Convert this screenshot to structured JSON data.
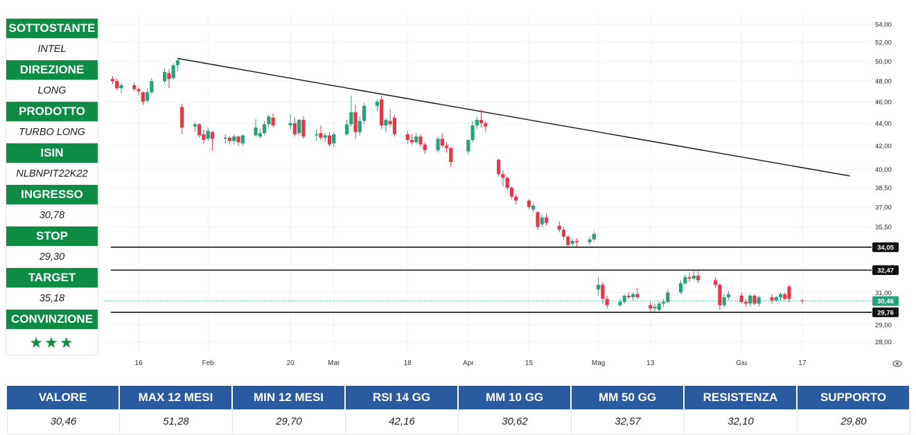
{
  "side_panel": [
    {
      "label": "SOTTOSTANTE",
      "value": "INTEL"
    },
    {
      "label": "DIREZIONE",
      "value": "LONG"
    },
    {
      "label": "PRODOTTO",
      "value": "TURBO LONG"
    },
    {
      "label": "ISIN",
      "value": "NLBNPIT22K22"
    },
    {
      "label": "INGRESSO",
      "value": "30,78"
    },
    {
      "label": "STOP",
      "value": "29,30"
    },
    {
      "label": "TARGET",
      "value": "35,18"
    },
    {
      "label": "CONVINZIONE",
      "value": "★★★"
    }
  ],
  "stats": [
    {
      "label": "VALORE",
      "value": "30,46"
    },
    {
      "label": "MAX 12 MESI",
      "value": "51,28"
    },
    {
      "label": "MIN 12 MESI",
      "value": "29,70"
    },
    {
      "label": "RSI 14 GG",
      "value": "42,16"
    },
    {
      "label": "MM 10 GG",
      "value": "30,62"
    },
    {
      "label": "MM 50 GG",
      "value": "32,57"
    },
    {
      "label": "RESISTENZA",
      "value": "32,10"
    },
    {
      "label": "SUPPORTO",
      "value": "29,80"
    }
  ],
  "colors": {
    "up": "#26a17b",
    "down": "#e0394a",
    "panel_green": "#0f8c44",
    "table_blue": "#2a5aa0",
    "last_price": "#26a17b"
  },
  "chart_data": {
    "type": "candlestick",
    "y_scale": "log",
    "ylim": [
      27.5,
      55
    ],
    "y_ticks": [
      "54,00",
      "52,00",
      "50,00",
      "48,00",
      "46,00",
      "44,00",
      "42,00",
      "40,00",
      "38,50",
      "37,00",
      "35,50",
      "31,00",
      "29,00",
      "28,00"
    ],
    "x_ticks": [
      {
        "label": "16",
        "date": "2024-01-16"
      },
      {
        "label": "Feb",
        "date": "2024-02-01"
      },
      {
        "label": "20",
        "date": "2024-02-20"
      },
      {
        "label": "Mar",
        "date": "2024-03-01"
      },
      {
        "label": "18",
        "date": "2024-03-18"
      },
      {
        "label": "Apr",
        "date": "2024-04-01"
      },
      {
        "label": "15",
        "date": "2024-04-15"
      },
      {
        "label": "Mag",
        "date": "2024-05-01"
      },
      {
        "label": "13",
        "date": "2024-05-13"
      },
      {
        "label": "Giu",
        "date": "2024-06-03"
      },
      {
        "label": "17",
        "date": "2024-06-17"
      }
    ],
    "candles": [
      {
        "d": "2024-01-10",
        "o": 48.2,
        "h": 48.5,
        "l": 47.7,
        "c": 48.0
      },
      {
        "d": "2024-01-11",
        "o": 48.0,
        "h": 48.3,
        "l": 47.1,
        "c": 47.3
      },
      {
        "d": "2024-01-12",
        "o": 47.3,
        "h": 47.8,
        "l": 46.8,
        "c": 47.6
      },
      {
        "d": "2024-01-15",
        "o": 47.6,
        "h": 47.9,
        "l": 47.0,
        "c": 47.2
      },
      {
        "d": "2024-01-16",
        "o": 47.2,
        "h": 47.4,
        "l": 46.6,
        "c": 47.0
      },
      {
        "d": "2024-01-17",
        "o": 46.9,
        "h": 47.0,
        "l": 45.7,
        "c": 46.0
      },
      {
        "d": "2024-01-18",
        "o": 46.1,
        "h": 47.2,
        "l": 45.9,
        "c": 46.9
      },
      {
        "d": "2024-01-19",
        "o": 46.9,
        "h": 48.3,
        "l": 46.7,
        "c": 48.0
      },
      {
        "d": "2024-01-22",
        "o": 48.0,
        "h": 49.3,
        "l": 47.7,
        "c": 48.9
      },
      {
        "d": "2024-01-23",
        "o": 48.8,
        "h": 49.2,
        "l": 47.3,
        "c": 48.2
      },
      {
        "d": "2024-01-24",
        "o": 48.3,
        "h": 49.8,
        "l": 48.1,
        "c": 49.6
      },
      {
        "d": "2024-01-25",
        "o": 49.6,
        "h": 50.4,
        "l": 49.0,
        "c": 50.1
      },
      {
        "d": "2024-01-26",
        "o": 45.5,
        "h": 45.8,
        "l": 43.0,
        "c": 43.6
      },
      {
        "d": "2024-01-29",
        "o": 43.7,
        "h": 44.1,
        "l": 43.2,
        "c": 43.9
      },
      {
        "d": "2024-01-30",
        "o": 43.9,
        "h": 44.0,
        "l": 42.7,
        "c": 42.9
      },
      {
        "d": "2024-01-31",
        "o": 43.0,
        "h": 43.4,
        "l": 42.2,
        "c": 42.5
      },
      {
        "d": "2024-02-01",
        "o": 42.6,
        "h": 43.6,
        "l": 42.4,
        "c": 43.3
      },
      {
        "d": "2024-02-02",
        "o": 43.2,
        "h": 43.3,
        "l": 41.6,
        "c": 42.6
      },
      {
        "d": "2024-02-05",
        "o": 42.6,
        "h": 43.0,
        "l": 42.2,
        "c": 42.7
      },
      {
        "d": "2024-02-06",
        "o": 42.7,
        "h": 42.8,
        "l": 42.1,
        "c": 42.4
      },
      {
        "d": "2024-02-07",
        "o": 42.4,
        "h": 43.0,
        "l": 42.1,
        "c": 42.8
      },
      {
        "d": "2024-02-08",
        "o": 42.8,
        "h": 42.9,
        "l": 42.0,
        "c": 42.3
      },
      {
        "d": "2024-02-09",
        "o": 42.2,
        "h": 43.0,
        "l": 42.0,
        "c": 42.9
      },
      {
        "d": "2024-02-12",
        "o": 42.9,
        "h": 44.4,
        "l": 42.8,
        "c": 43.6
      },
      {
        "d": "2024-02-13",
        "o": 42.8,
        "h": 43.5,
        "l": 42.6,
        "c": 43.1
      },
      {
        "d": "2024-02-14",
        "o": 43.1,
        "h": 44.2,
        "l": 42.9,
        "c": 43.9
      },
      {
        "d": "2024-02-15",
        "o": 43.9,
        "h": 44.8,
        "l": 43.6,
        "c": 44.6
      },
      {
        "d": "2024-02-16",
        "o": 44.5,
        "h": 44.9,
        "l": 43.6,
        "c": 43.8
      },
      {
        "d": "2024-02-20",
        "o": 43.8,
        "h": 44.8,
        "l": 43.5,
        "c": 44.0
      },
      {
        "d": "2024-02-21",
        "o": 44.0,
        "h": 44.5,
        "l": 42.8,
        "c": 43.0
      },
      {
        "d": "2024-02-22",
        "o": 43.1,
        "h": 44.4,
        "l": 42.9,
        "c": 44.3
      },
      {
        "d": "2024-02-23",
        "o": 44.3,
        "h": 44.6,
        "l": 42.6,
        "c": 42.8
      },
      {
        "d": "2024-02-26",
        "o": 42.9,
        "h": 43.4,
        "l": 42.4,
        "c": 43.0
      },
      {
        "d": "2024-02-27",
        "o": 43.1,
        "h": 43.8,
        "l": 42.5,
        "c": 42.7
      },
      {
        "d": "2024-02-28",
        "o": 42.7,
        "h": 43.1,
        "l": 42.3,
        "c": 42.9
      },
      {
        "d": "2024-02-29",
        "o": 42.9,
        "h": 43.2,
        "l": 41.9,
        "c": 42.1
      },
      {
        "d": "2024-03-01",
        "o": 42.2,
        "h": 43.2,
        "l": 41.9,
        "c": 43.0
      },
      {
        "d": "2024-03-04",
        "o": 43.0,
        "h": 44.3,
        "l": 42.9,
        "c": 43.9
      },
      {
        "d": "2024-03-05",
        "o": 43.9,
        "h": 46.6,
        "l": 43.7,
        "c": 45.0
      },
      {
        "d": "2024-03-06",
        "o": 45.0,
        "h": 45.7,
        "l": 42.6,
        "c": 43.2
      },
      {
        "d": "2024-03-07",
        "o": 43.2,
        "h": 44.6,
        "l": 42.9,
        "c": 44.2
      },
      {
        "d": "2024-03-08",
        "o": 44.2,
        "h": 45.9,
        "l": 43.9,
        "c": 45.6
      },
      {
        "d": "2024-03-11",
        "o": 45.6,
        "h": 46.2,
        "l": 45.1,
        "c": 46.0
      },
      {
        "d": "2024-03-12",
        "o": 46.2,
        "h": 46.6,
        "l": 43.5,
        "c": 43.8
      },
      {
        "d": "2024-03-13",
        "o": 43.8,
        "h": 44.5,
        "l": 43.2,
        "c": 44.3
      },
      {
        "d": "2024-03-14",
        "o": 44.2,
        "h": 45.3,
        "l": 43.7,
        "c": 43.9
      },
      {
        "d": "2024-03-15",
        "o": 44.5,
        "h": 44.8,
        "l": 42.8,
        "c": 43.0
      },
      {
        "d": "2024-03-18",
        "o": 43.0,
        "h": 43.3,
        "l": 42.2,
        "c": 42.5
      },
      {
        "d": "2024-03-19",
        "o": 42.5,
        "h": 43.0,
        "l": 42.1,
        "c": 42.3
      },
      {
        "d": "2024-03-20",
        "o": 42.3,
        "h": 43.1,
        "l": 42.1,
        "c": 42.8
      },
      {
        "d": "2024-03-21",
        "o": 42.8,
        "h": 43.0,
        "l": 41.9,
        "c": 42.1
      },
      {
        "d": "2024-03-22",
        "o": 42.1,
        "h": 42.3,
        "l": 41.3,
        "c": 41.6
      },
      {
        "d": "2024-03-25",
        "o": 41.6,
        "h": 42.8,
        "l": 41.4,
        "c": 42.6
      },
      {
        "d": "2024-03-26",
        "o": 42.6,
        "h": 43.1,
        "l": 41.8,
        "c": 42.0
      },
      {
        "d": "2024-03-27",
        "o": 42.0,
        "h": 42.3,
        "l": 41.4,
        "c": 41.8
      },
      {
        "d": "2024-03-28",
        "o": 41.8,
        "h": 41.9,
        "l": 40.2,
        "c": 40.6
      },
      {
        "d": "2024-04-01",
        "o": 41.5,
        "h": 42.6,
        "l": 41.2,
        "c": 42.5
      },
      {
        "d": "2024-04-02",
        "o": 42.5,
        "h": 44.2,
        "l": 42.3,
        "c": 43.8
      },
      {
        "d": "2024-04-03",
        "o": 43.8,
        "h": 44.6,
        "l": 43.5,
        "c": 44.3
      },
      {
        "d": "2024-04-04",
        "o": 44.3,
        "h": 45.3,
        "l": 43.6,
        "c": 44.0
      },
      {
        "d": "2024-04-05",
        "o": 44.0,
        "h": 44.2,
        "l": 43.2,
        "c": 43.7
      },
      {
        "d": "2024-04-08",
        "o": 40.8,
        "h": 40.9,
        "l": 39.4,
        "c": 39.6
      },
      {
        "d": "2024-04-09",
        "o": 39.6,
        "h": 39.9,
        "l": 38.6,
        "c": 39.3
      },
      {
        "d": "2024-04-10",
        "o": 39.3,
        "h": 39.4,
        "l": 38.3,
        "c": 38.5
      },
      {
        "d": "2024-04-11",
        "o": 38.5,
        "h": 38.6,
        "l": 37.6,
        "c": 37.8
      },
      {
        "d": "2024-04-12",
        "o": 37.8,
        "h": 38.0,
        "l": 37.2,
        "c": 37.5
      },
      {
        "d": "2024-04-15",
        "o": 37.5,
        "h": 37.6,
        "l": 36.8,
        "c": 37.0
      },
      {
        "d": "2024-04-16",
        "o": 36.8,
        "h": 37.3,
        "l": 36.6,
        "c": 37.1
      },
      {
        "d": "2024-04-17",
        "o": 36.6,
        "h": 36.7,
        "l": 35.3,
        "c": 35.5
      },
      {
        "d": "2024-04-18",
        "o": 35.7,
        "h": 36.4,
        "l": 35.5,
        "c": 36.2
      },
      {
        "d": "2024-04-19",
        "o": 36.2,
        "h": 36.5,
        "l": 35.6,
        "c": 35.8
      },
      {
        "d": "2024-04-22",
        "o": 35.6,
        "h": 35.9,
        "l": 35.1,
        "c": 35.3
      },
      {
        "d": "2024-04-23",
        "o": 35.3,
        "h": 35.5,
        "l": 34.6,
        "c": 34.8
      },
      {
        "d": "2024-04-24",
        "o": 34.8,
        "h": 34.9,
        "l": 34.1,
        "c": 34.2
      },
      {
        "d": "2024-04-25",
        "o": 34.3,
        "h": 34.7,
        "l": 34.0,
        "c": 34.5
      },
      {
        "d": "2024-04-26",
        "o": 34.5,
        "h": 34.7,
        "l": 34.1,
        "c": 34.4
      },
      {
        "d": "2024-04-29",
        "o": 34.4,
        "h": 34.8,
        "l": 34.2,
        "c": 34.6
      },
      {
        "d": "2024-04-30",
        "o": 34.6,
        "h": 35.2,
        "l": 34.5,
        "c": 35.0
      },
      {
        "d": "2024-05-01",
        "o": 31.2,
        "h": 32.0,
        "l": 30.8,
        "c": 31.5
      },
      {
        "d": "2024-05-02",
        "o": 31.5,
        "h": 31.7,
        "l": 30.3,
        "c": 30.6
      },
      {
        "d": "2024-05-03",
        "o": 30.6,
        "h": 30.8,
        "l": 30.0,
        "c": 30.2
      },
      {
        "d": "2024-05-06",
        "o": 30.2,
        "h": 30.6,
        "l": 30.1,
        "c": 30.4
      },
      {
        "d": "2024-05-07",
        "o": 30.4,
        "h": 30.9,
        "l": 30.3,
        "c": 30.8
      },
      {
        "d": "2024-05-08",
        "o": 30.8,
        "h": 31.0,
        "l": 30.6,
        "c": 30.7
      },
      {
        "d": "2024-05-09",
        "o": 30.7,
        "h": 31.0,
        "l": 30.5,
        "c": 30.9
      },
      {
        "d": "2024-05-10",
        "o": 30.9,
        "h": 31.3,
        "l": 30.6,
        "c": 30.7
      },
      {
        "d": "2024-05-13",
        "o": 30.2,
        "h": 30.4,
        "l": 29.8,
        "c": 30.0
      },
      {
        "d": "2024-05-14",
        "o": 30.0,
        "h": 30.3,
        "l": 29.8,
        "c": 30.1
      },
      {
        "d": "2024-05-15",
        "o": 29.9,
        "h": 30.4,
        "l": 29.7,
        "c": 30.3
      },
      {
        "d": "2024-05-16",
        "o": 30.3,
        "h": 30.6,
        "l": 30.1,
        "c": 30.4
      },
      {
        "d": "2024-05-17",
        "o": 30.4,
        "h": 31.2,
        "l": 30.3,
        "c": 31.0
      },
      {
        "d": "2024-05-20",
        "o": 31.0,
        "h": 31.8,
        "l": 30.9,
        "c": 31.6
      },
      {
        "d": "2024-05-21",
        "o": 31.6,
        "h": 32.2,
        "l": 31.5,
        "c": 32.0
      },
      {
        "d": "2024-05-22",
        "o": 32.0,
        "h": 32.3,
        "l": 31.7,
        "c": 31.9
      },
      {
        "d": "2024-05-23",
        "o": 31.9,
        "h": 32.4,
        "l": 31.8,
        "c": 32.1
      },
      {
        "d": "2024-05-24",
        "o": 32.1,
        "h": 32.4,
        "l": 31.6,
        "c": 31.8
      },
      {
        "d": "2024-05-28",
        "o": 31.8,
        "h": 32.0,
        "l": 31.3,
        "c": 31.5
      },
      {
        "d": "2024-05-29",
        "o": 31.5,
        "h": 31.6,
        "l": 29.9,
        "c": 30.2
      },
      {
        "d": "2024-05-30",
        "o": 30.2,
        "h": 30.9,
        "l": 30.1,
        "c": 30.7
      },
      {
        "d": "2024-05-31",
        "o": 30.7,
        "h": 31.1,
        "l": 30.5,
        "c": 30.9
      },
      {
        "d": "2024-06-03",
        "o": 30.8,
        "h": 31.0,
        "l": 30.3,
        "c": 30.4
      },
      {
        "d": "2024-06-04",
        "o": 30.4,
        "h": 30.6,
        "l": 30.1,
        "c": 30.3
      },
      {
        "d": "2024-06-05",
        "o": 30.3,
        "h": 30.9,
        "l": 30.1,
        "c": 30.8
      },
      {
        "d": "2024-06-06",
        "o": 30.8,
        "h": 30.9,
        "l": 30.2,
        "c": 30.3
      },
      {
        "d": "2024-06-07",
        "o": 30.3,
        "h": 30.8,
        "l": 30.1,
        "c": 30.7
      },
      {
        "d": "2024-06-10",
        "o": 30.7,
        "h": 30.9,
        "l": 30.3,
        "c": 30.5
      },
      {
        "d": "2024-06-11",
        "o": 30.5,
        "h": 30.8,
        "l": 30.4,
        "c": 30.7
      },
      {
        "d": "2024-06-12",
        "o": 30.7,
        "h": 31.0,
        "l": 30.5,
        "c": 30.9
      },
      {
        "d": "2024-06-13",
        "o": 30.9,
        "h": 31.0,
        "l": 30.5,
        "c": 30.6
      },
      {
        "d": "2024-06-14",
        "o": 31.4,
        "h": 31.5,
        "l": 30.4,
        "c": 30.6
      },
      {
        "d": "2024-06-17",
        "o": 30.5,
        "h": 30.6,
        "l": 30.3,
        "c": 30.46
      }
    ],
    "trendline": [
      {
        "date": "2024-01-25",
        "value": 50.3
      },
      {
        "date": "2024-06-28",
        "value": 39.45
      }
    ],
    "horizontal_lines": [
      {
        "value": 34.05,
        "label": "34,05"
      },
      {
        "value": 32.47,
        "label": "32,47"
      },
      {
        "value": 29.76,
        "label": "29,76"
      }
    ],
    "last_price": {
      "value": 30.46,
      "label": "30,46"
    }
  }
}
